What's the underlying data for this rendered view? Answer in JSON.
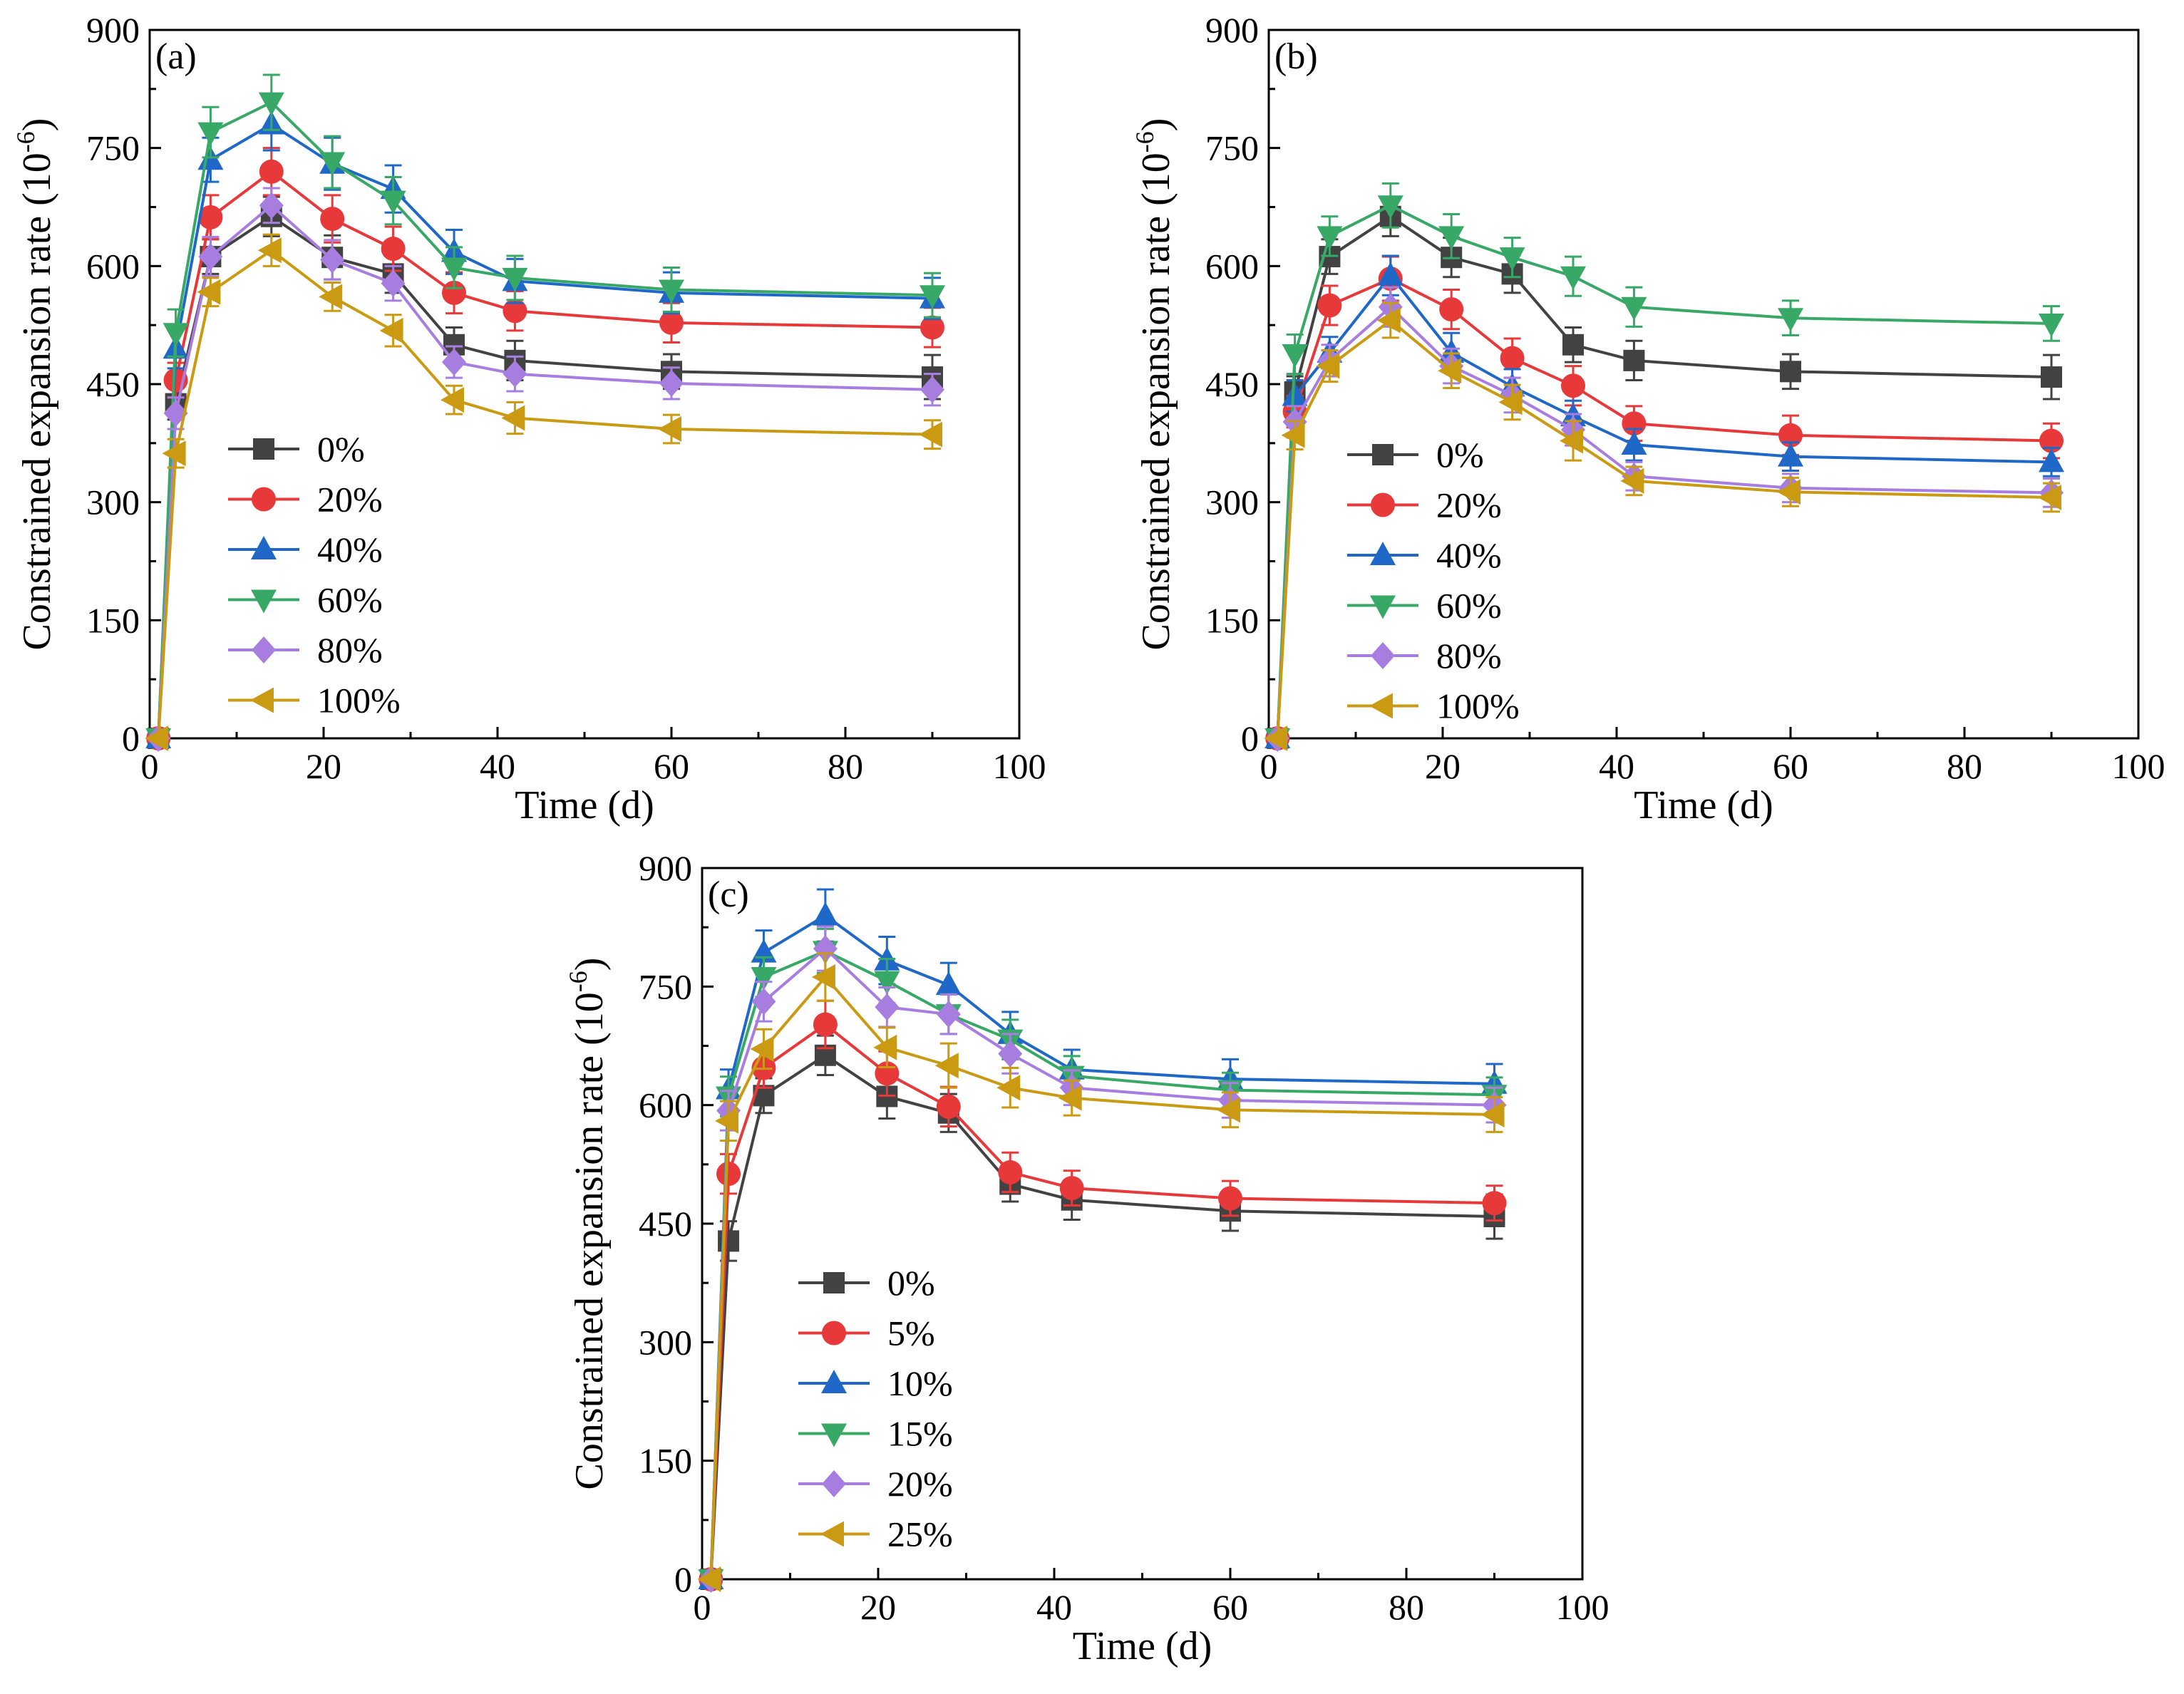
{
  "figure": {
    "charts_count": 3
  },
  "chart_data": [
    {
      "panel_label": "(a)",
      "type": "line",
      "xlabel": "Time (d)",
      "ylabel_main": "Constrained expansion rate (10",
      "ylabel_sup": "-6",
      "ylabel_close": ")",
      "xlim": [
        0,
        100
      ],
      "ylim": [
        0,
        900
      ],
      "x_ticks": [
        "0",
        "20",
        "40",
        "60",
        "80",
        "100"
      ],
      "y_ticks": [
        "0",
        "150",
        "300",
        "450",
        "600",
        "750",
        "900"
      ],
      "x": [
        1,
        3,
        7,
        14,
        21,
        28,
        35,
        42,
        60,
        90
      ],
      "series": [
        {
          "name": "0%",
          "color": "#424242",
          "marker": "square",
          "values": [
            0,
            425,
            612,
            663,
            611,
            590,
            500,
            480,
            466,
            459
          ],
          "err": [
            0,
            20,
            22,
            25,
            28,
            24,
            22,
            25,
            22,
            28
          ]
        },
        {
          "name": "20%",
          "color": "#e8393a",
          "marker": "circle",
          "values": [
            0,
            455,
            662,
            720,
            660,
            622,
            566,
            543,
            528,
            522
          ],
          "err": [
            0,
            22,
            28,
            30,
            30,
            28,
            26,
            25,
            25,
            25
          ]
        },
        {
          "name": "40%",
          "color": "#1f68c8",
          "marker": "triangle-up",
          "values": [
            0,
            495,
            735,
            780,
            730,
            698,
            618,
            581,
            566,
            559
          ],
          "err": [
            0,
            25,
            28,
            33,
            33,
            30,
            28,
            28,
            26,
            26
          ]
        },
        {
          "name": "60%",
          "color": "#38a866",
          "marker": "triangle-down",
          "values": [
            0,
            515,
            770,
            808,
            732,
            683,
            598,
            585,
            570,
            563
          ],
          "err": [
            0,
            30,
            32,
            35,
            33,
            30,
            26,
            28,
            28,
            28
          ]
        },
        {
          "name": "80%",
          "color": "#a77ee0",
          "marker": "diamond",
          "values": [
            0,
            413,
            612,
            677,
            608,
            578,
            478,
            463,
            451,
            443
          ],
          "err": [
            0,
            20,
            25,
            22,
            25,
            22,
            20,
            22,
            20,
            20
          ]
        },
        {
          "name": "100%",
          "color": "#c99a12",
          "marker": "triangle-left",
          "values": [
            0,
            362,
            567,
            620,
            561,
            518,
            430,
            407,
            393,
            386
          ],
          "err": [
            0,
            18,
            18,
            20,
            18,
            20,
            18,
            20,
            18,
            18
          ]
        }
      ]
    },
    {
      "panel_label": "(b)",
      "type": "line",
      "xlabel": "Time (d)",
      "ylabel_main": "Constrained expansion rate (10",
      "ylabel_sup": "-6",
      "ylabel_close": ")",
      "xlim": [
        0,
        100
      ],
      "ylim": [
        0,
        900
      ],
      "x_ticks": [
        "0",
        "20",
        "40",
        "60",
        "80",
        "100"
      ],
      "y_ticks": [
        "0",
        "150",
        "300",
        "450",
        "600",
        "750",
        "900"
      ],
      "x": [
        1,
        3,
        7,
        14,
        21,
        28,
        35,
        42,
        60,
        90
      ],
      "series": [
        {
          "name": "0%",
          "color": "#424242",
          "marker": "square",
          "values": [
            0,
            440,
            612,
            663,
            611,
            590,
            500,
            480,
            466,
            459
          ],
          "err": [
            0,
            20,
            22,
            25,
            25,
            24,
            22,
            25,
            22,
            28
          ]
        },
        {
          "name": "20%",
          "color": "#e8393a",
          "marker": "circle",
          "values": [
            0,
            415,
            550,
            584,
            545,
            483,
            448,
            400,
            385,
            378
          ],
          "err": [
            0,
            20,
            25,
            28,
            25,
            25,
            25,
            22,
            25,
            22
          ]
        },
        {
          "name": "40%",
          "color": "#1f68c8",
          "marker": "triangle-up",
          "values": [
            0,
            435,
            490,
            588,
            490,
            447,
            409,
            373,
            358,
            351
          ],
          "err": [
            0,
            20,
            20,
            25,
            25,
            22,
            20,
            20,
            18,
            18
          ]
        },
        {
          "name": "60%",
          "color": "#38a866",
          "marker": "triangle-down",
          "values": [
            0,
            488,
            638,
            677,
            638,
            611,
            587,
            548,
            534,
            527
          ],
          "err": [
            0,
            25,
            25,
            28,
            28,
            25,
            25,
            25,
            22,
            22
          ]
        },
        {
          "name": "80%",
          "color": "#a77ee0",
          "marker": "diamond",
          "values": [
            0,
            402,
            480,
            548,
            473,
            436,
            392,
            333,
            318,
            312
          ],
          "err": [
            0,
            20,
            20,
            25,
            22,
            22,
            20,
            18,
            18,
            18
          ]
        },
        {
          "name": "100%",
          "color": "#c99a12",
          "marker": "triangle-left",
          "values": [
            0,
            385,
            473,
            531,
            467,
            427,
            378,
            327,
            313,
            306
          ],
          "err": [
            0,
            18,
            20,
            22,
            22,
            22,
            25,
            18,
            18,
            18
          ]
        }
      ]
    },
    {
      "panel_label": "(c)",
      "type": "line",
      "xlabel": "Time (d)",
      "ylabel_main": "Constrained expansion rate (10",
      "ylabel_sup": "-6",
      "ylabel_close": ")",
      "xlim": [
        0,
        100
      ],
      "ylim": [
        0,
        900
      ],
      "x_ticks": [
        "0",
        "20",
        "40",
        "60",
        "80",
        "100"
      ],
      "y_ticks": [
        "0",
        "150",
        "300",
        "450",
        "600",
        "750",
        "900"
      ],
      "x": [
        1,
        3,
        7,
        14,
        21,
        28,
        35,
        42,
        60,
        90
      ],
      "series": [
        {
          "name": "0%",
          "color": "#424242",
          "marker": "square",
          "values": [
            0,
            428,
            612,
            663,
            611,
            590,
            500,
            480,
            466,
            459
          ],
          "err": [
            0,
            25,
            22,
            25,
            28,
            24,
            22,
            25,
            25,
            28
          ]
        },
        {
          "name": "5%",
          "color": "#e8393a",
          "marker": "circle",
          "values": [
            0,
            513,
            647,
            702,
            640,
            598,
            515,
            495,
            482,
            476
          ],
          "err": [
            0,
            25,
            25,
            30,
            28,
            25,
            25,
            22,
            22,
            22
          ]
        },
        {
          "name": "10%",
          "color": "#1f68c8",
          "marker": "triangle-up",
          "values": [
            0,
            620,
            793,
            840,
            783,
            752,
            690,
            645,
            633,
            627
          ],
          "err": [
            0,
            25,
            28,
            33,
            30,
            28,
            28,
            25,
            25,
            25
          ]
        },
        {
          "name": "15%",
          "color": "#38a866",
          "marker": "triangle-down",
          "values": [
            0,
            611,
            762,
            795,
            757,
            715,
            683,
            637,
            619,
            613
          ],
          "err": [
            0,
            25,
            25,
            28,
            28,
            25,
            25,
            25,
            22,
            22
          ]
        },
        {
          "name": "20%",
          "color": "#a77ee0",
          "marker": "diamond",
          "values": [
            0,
            593,
            731,
            798,
            724,
            715,
            665,
            622,
            606,
            600
          ],
          "err": [
            0,
            25,
            25,
            28,
            25,
            25,
            25,
            22,
            22,
            22
          ]
        },
        {
          "name": "25%",
          "color": "#c99a12",
          "marker": "triangle-left",
          "values": [
            0,
            580,
            671,
            762,
            673,
            650,
            622,
            609,
            594,
            588
          ],
          "err": [
            0,
            25,
            25,
            30,
            25,
            28,
            25,
            22,
            22,
            22
          ]
        }
      ]
    }
  ]
}
